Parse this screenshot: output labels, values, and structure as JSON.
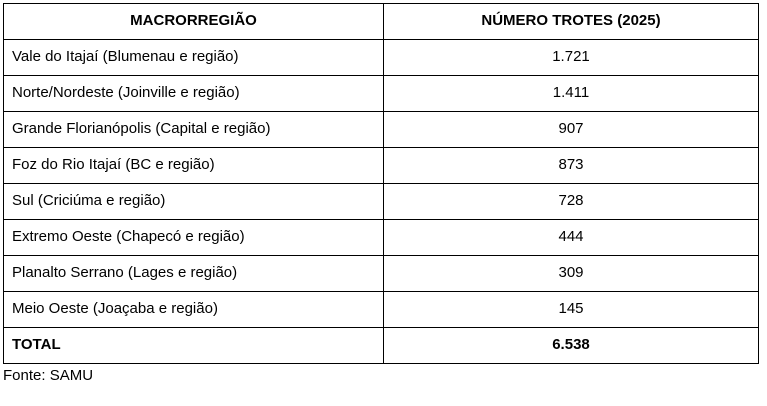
{
  "table": {
    "headers": [
      "MACRORREGIÃO",
      "NÚMERO TROTES (2025)"
    ],
    "rows": [
      {
        "region": "Vale do Itajaí (Blumenau e região)",
        "count": "1.721"
      },
      {
        "region": "Norte/Nordeste (Joinville e região)",
        "count": "1.411"
      },
      {
        "region": "Grande Florianópolis (Capital e região)",
        "count": "907"
      },
      {
        "region": "Foz do Rio Itajaí (BC e região)",
        "count": "873"
      },
      {
        "region": "Sul (Criciúma e região)",
        "count": "728"
      },
      {
        "region": "Extremo Oeste (Chapecó e região)",
        "count": "444"
      },
      {
        "region": "Planalto Serrano (Lages e região)",
        "count": "309"
      },
      {
        "region": "Meio Oeste (Joaçaba e região)",
        "count": "145"
      }
    ],
    "total": {
      "label": "TOTAL",
      "count": "6.538"
    }
  },
  "footer": {
    "source": "Fonte: SAMU"
  },
  "colors": {
    "border": "#000000",
    "text": "#000000",
    "background": "#ffffff"
  },
  "chart_data": {
    "type": "table",
    "title": "NÚMERO TROTES (2025)",
    "columns": [
      "MACRORREGIÃO",
      "NÚMERO TROTES (2025)"
    ],
    "categories": [
      "Vale do Itajaí (Blumenau e região)",
      "Norte/Nordeste (Joinville e região)",
      "Grande Florianópolis (Capital e região)",
      "Foz do Rio Itajaí (BC e região)",
      "Sul (Criciúma e região)",
      "Extremo Oeste (Chapecó e região)",
      "Planalto Serrano (Lages e região)",
      "Meio Oeste (Joaçaba e região)"
    ],
    "values": [
      1721,
      1411,
      907,
      873,
      728,
      444,
      309,
      145
    ],
    "total": 6538,
    "source": "Fonte: SAMU"
  }
}
